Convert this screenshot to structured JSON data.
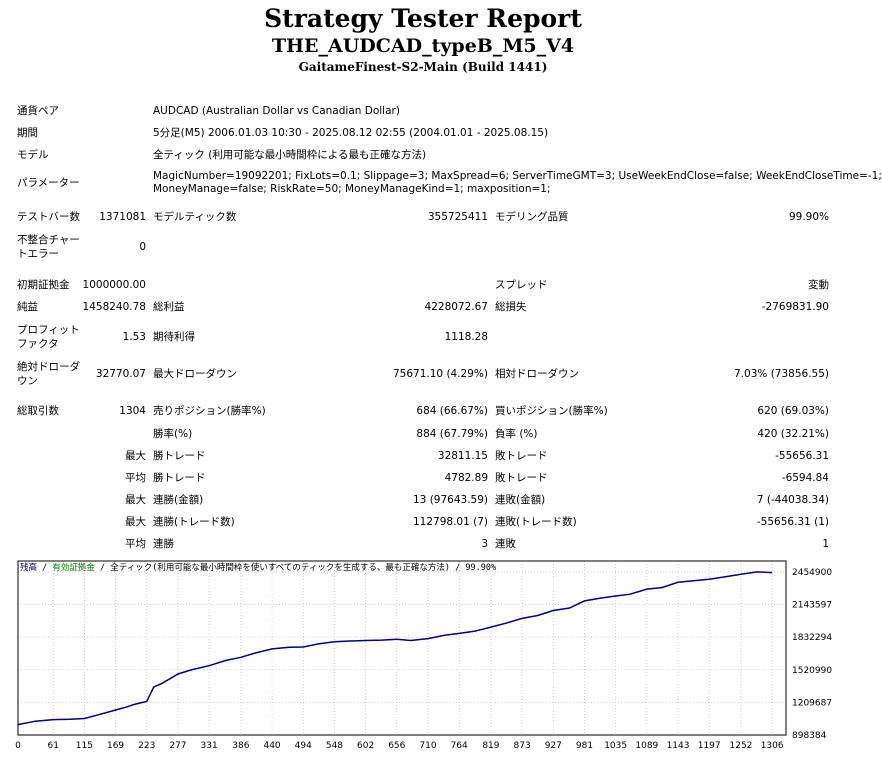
{
  "report": {
    "title": "Strategy Tester Report",
    "subtitle": "THE_AUDCAD_typeB_M5_V4",
    "server": "GaitameFinest-S2-Main (Build 1441)"
  },
  "settings": {
    "symbol_label": "通貨ペア",
    "symbol_value": "AUDCAD (Australian Dollar vs Canadian Dollar)",
    "period_label": "期間",
    "period_value": "5分足(M5) 2006.01.03 10:30 - 2025.08.12 02:55 (2004.01.01 - 2025.08.15)",
    "model_label": "モデル",
    "model_value": "全ティック (利用可能な最小時間枠による最も正確な方法)",
    "params_label": "パラメーター",
    "params_line1": "MagicNumber=19092201; FixLots=0.1; Slippage=3; MaxSpread=6; ServerTimeGMT=3; UseWeekEndClose=false; WeekEndCloseTime=-1;",
    "params_line2": "MoneyManage=false; RiskRate=50; MoneyManageKind=1; maxposition=1;"
  },
  "bars": {
    "bars_label": "テストバー数",
    "bars_value": "1371081",
    "ticks_label": "モデルティック数",
    "ticks_value": "355725411",
    "quality_label": "モデリング品質",
    "quality_value": "99.90%",
    "mismatch_label_1": "不整合チャー",
    "mismatch_label_2": "トエラー",
    "mismatch_value": "0"
  },
  "results": {
    "deposit_label": "初期証拠金",
    "deposit_value": "1000000.00",
    "spread_label": "スプレッド",
    "spread_value": "変動",
    "net_label": "純益",
    "net_value": "1458240.78",
    "gross_profit_label": "総利益",
    "gross_profit_value": "4228072.67",
    "gross_loss_label": "総損失",
    "gross_loss_value": "-2769831.90",
    "pf_label_1": "プロフィット",
    "pf_label_2": "ファクタ",
    "pf_value": "1.53",
    "expected_label": "期待利得",
    "expected_value": "1118.28",
    "abs_dd_label_1": "絶対ドローダ",
    "abs_dd_label_2": "ウン",
    "abs_dd_value": "32770.07",
    "max_dd_label": "最大ドローダウン",
    "max_dd_value": "75671.10 (4.29%)",
    "rel_dd_label": "相対ドローダウン",
    "rel_dd_value": "7.03% (73856.55)",
    "total_trades_label": "総取引数",
    "total_trades_value": "1304",
    "short_label": "売りポジション(勝率%)",
    "short_value": "684 (66.67%)",
    "long_label": "買いポジション(勝率%)",
    "long_value": "620 (69.03%)",
    "win_rate_label": "勝率(%)",
    "win_rate_value": "884 (67.79%)",
    "loss_rate_label": "負率 (%)",
    "loss_rate_value": "420 (32.21%)",
    "max_label": "最大",
    "largest_win_label": "勝トレード",
    "largest_win_value": "32811.15",
    "largest_loss_label": "敗トレード",
    "largest_loss_value": "-55656.31",
    "avg_label": "平均",
    "avg_win_label": "勝トレード",
    "avg_win_value": "4782.89",
    "avg_loss_label": "敗トレード",
    "avg_loss_value": "-6594.84",
    "max2_label": "最大",
    "cons_wins_amt_label": "連勝(金額)",
    "cons_wins_amt_value": "13 (97643.59)",
    "cons_losses_amt_label": "連敗(金額)",
    "cons_losses_amt_value": "7 (-44038.34)",
    "max3_label": "最大",
    "cons_profit_label": "連勝(トレード数)",
    "cons_profit_value": "112798.01 (7)",
    "cons_loss_label": "連敗(トレード数)",
    "cons_loss_value": "-55656.31 (1)",
    "avg2_label": "平均",
    "avg_cons_wins_label": "連勝",
    "avg_cons_wins_value": "3",
    "avg_cons_losses_label": "連敗",
    "avg_cons_losses_value": "1"
  },
  "chart_data": {
    "type": "line",
    "legend": {
      "balance": "残高",
      "sep1": " / ",
      "equity": "有効証拠金",
      "sep2": " / ",
      "model": "全ティック(利用可能な最小時間枠を使いすべてのティックを生成する、最も正確な方法)",
      "sep3": " / ",
      "quality": "99.90%"
    },
    "colors": {
      "balance": "#000080",
      "equity": "#008000",
      "grid": "#c0c0c0"
    },
    "x_ticks": [
      "0",
      "61",
      "115",
      "169",
      "223",
      "277",
      "331",
      "386",
      "440",
      "494",
      "548",
      "602",
      "656",
      "710",
      "764",
      "819",
      "873",
      "927",
      "981",
      "1035",
      "1089",
      "1143",
      "1197",
      "1252",
      "1306"
    ],
    "y_ticks": [
      "2454900",
      "2143597",
      "1832294",
      "1520990",
      "1209687",
      "898384"
    ],
    "xlim": [
      0,
      1330
    ],
    "ylim": [
      898384,
      2558668
    ],
    "grid": true,
    "series": [
      {
        "name": "残高",
        "x": [
          0,
          30,
          61,
          90,
          115,
          140,
          169,
          190,
          200,
          223,
          235,
          250,
          277,
          300,
          331,
          360,
          386,
          410,
          440,
          470,
          494,
          520,
          548,
          575,
          602,
          630,
          656,
          680,
          710,
          740,
          764,
          790,
          819,
          845,
          873,
          900,
          927,
          955,
          981,
          1010,
          1035,
          1060,
          1089,
          1115,
          1143,
          1170,
          1197,
          1225,
          1252,
          1280,
          1306
        ],
        "y": [
          998000,
          1030000,
          1045000,
          1048000,
          1056000,
          1092000,
          1137000,
          1168000,
          1188000,
          1220000,
          1355000,
          1393000,
          1480000,
          1520000,
          1560000,
          1610000,
          1640000,
          1680000,
          1720000,
          1735000,
          1738000,
          1768000,
          1788000,
          1795000,
          1800000,
          1804000,
          1812000,
          1800000,
          1818000,
          1852000,
          1868000,
          1888000,
          1928000,
          1965000,
          2011000,
          2039000,
          2086000,
          2110000,
          2178000,
          2206000,
          2225000,
          2242000,
          2291000,
          2305000,
          2355000,
          2370000,
          2384000,
          2409000,
          2433000,
          2455000,
          2448000
        ]
      }
    ]
  }
}
